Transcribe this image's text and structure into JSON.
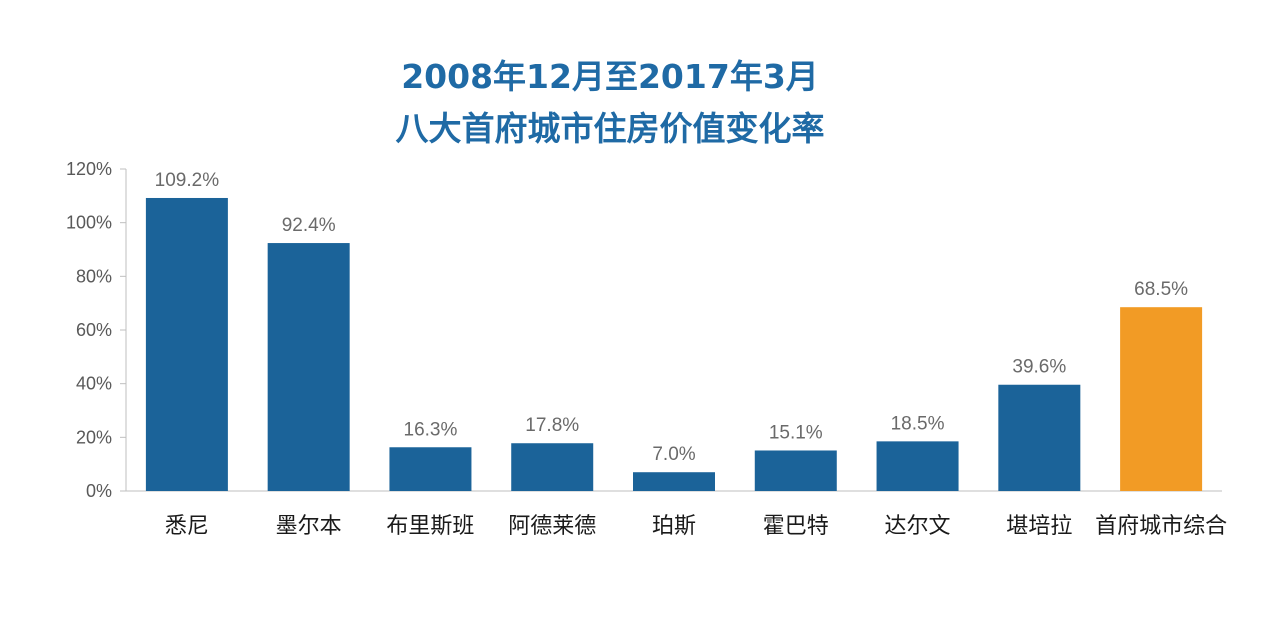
{
  "title": "2008年12月至2017年3月",
  "subtitle": "八大首府城市住房价值变化率",
  "colors": {
    "primary": "#1b6399",
    "highlight": "#f29b25",
    "title": "#1f6aa5"
  },
  "chart_data": {
    "type": "bar",
    "title": "2008年12月至2017年3月",
    "subtitle": "八大首府城市住房价值变化率",
    "categories": [
      "悉尼",
      "墨尔本",
      "布里斯班",
      "阿德莱德",
      "珀斯",
      "霍巴特",
      "达尔文",
      "堪培拉",
      "首府城市综合"
    ],
    "values": [
      109.2,
      92.4,
      16.3,
      17.8,
      7.0,
      15.1,
      18.5,
      39.6,
      68.5
    ],
    "data_labels": [
      "109.2%",
      "92.4%",
      "16.3%",
      "17.8%",
      "7.0%",
      "15.1%",
      "18.5%",
      "39.6%",
      "68.5%"
    ],
    "highlight_index": 8,
    "ylim": [
      0,
      120
    ],
    "yticks": [
      0,
      20,
      40,
      60,
      80,
      100,
      120
    ],
    "ytick_labels": [
      "0%",
      "20%",
      "40%",
      "60%",
      "80%",
      "100%",
      "120%"
    ],
    "xlabel": "",
    "ylabel": "",
    "grid": false,
    "legend": "none"
  }
}
